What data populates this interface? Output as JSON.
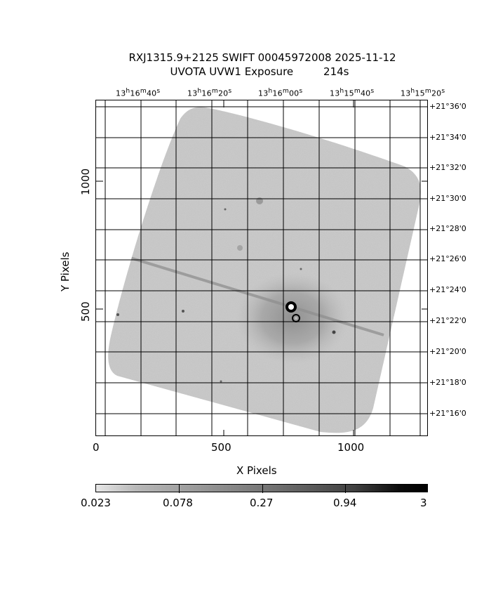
{
  "title": {
    "line1": "RXJ1315.9+2125 SWIFT 00045972008 2025-11-12",
    "line2": "UVOTA UVW1 Exposure         214s"
  },
  "axes": {
    "xlabel": "X Pixels",
    "ylabel": "Y Pixels",
    "x_ticks": [
      "0",
      "500",
      "1000"
    ],
    "y_ticks": [
      "500",
      "1000"
    ],
    "ra_labels": [
      "13h16m40s",
      "13h16m20s",
      "13h16m00s",
      "13h15m40s",
      "13h15m20s"
    ],
    "dec_labels": [
      "+21°36'0",
      "+21°34'0",
      "+21°32'0",
      "+21°30'0",
      "+21°28'0",
      "+21°26'0",
      "+21°24'0",
      "+21°22'0",
      "+21°20'0",
      "+21°18'0",
      "+21°16'0"
    ]
  },
  "colorbar": {
    "labels": [
      "0.023",
      "0.078",
      "0.27",
      "0.94",
      "3"
    ]
  },
  "image": {
    "description_tokens": [
      "exposure-map",
      "grayscale",
      "rotated-field",
      "bright-source",
      "satellite-trail"
    ],
    "colors": {
      "background": "#ffffff",
      "field": "#b5b5b5",
      "ink": "#000000"
    }
  }
}
